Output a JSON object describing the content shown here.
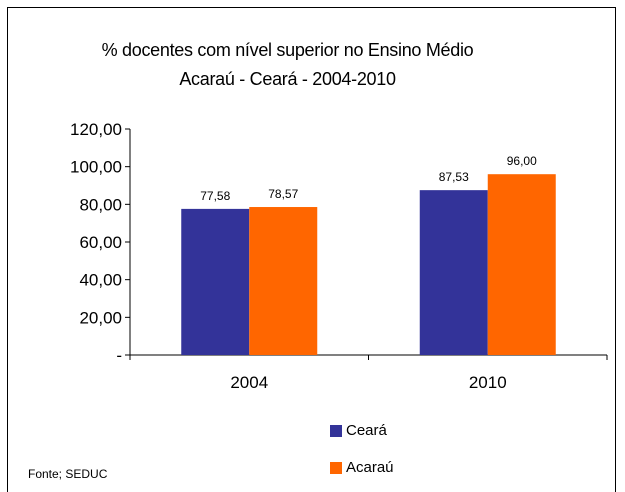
{
  "chart_data": {
    "type": "bar",
    "title": "% docentes com nível superior no Ensino Médio",
    "subtitle": "Acaraú  -  Ceará - 2004-2010",
    "categories": [
      "2004",
      "2010"
    ],
    "series": [
      {
        "name": "Ceará",
        "values": [
          77.58,
          87.53
        ],
        "labels": [
          "77,58",
          "87,53"
        ],
        "color": "#333399"
      },
      {
        "name": "Acaraú",
        "values": [
          78.57,
          96.0
        ],
        "labels": [
          "78,57",
          "96,00"
        ],
        "color": "#FF6600"
      }
    ],
    "yticks": [
      "-",
      "20,00",
      "40,00",
      "60,00",
      "80,00",
      "100,00",
      "120,00"
    ],
    "ylim": [
      0,
      120
    ],
    "grid": false,
    "legend": "bottom",
    "source": "Fonte; SEDUC"
  }
}
